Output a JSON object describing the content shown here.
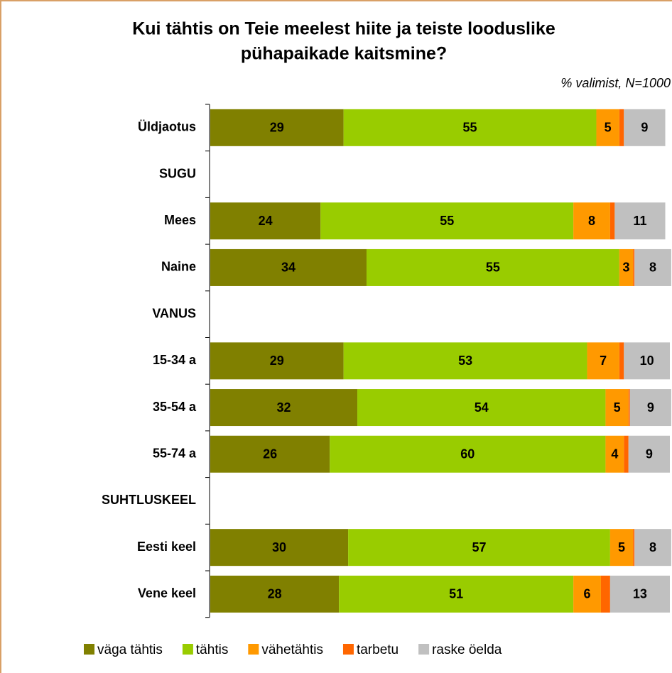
{
  "chart_data": {
    "type": "stacked_barh",
    "title": [
      "Kui tähtis on Teie meelest hiite ja teiste looduslike",
      "pühapaikade kaitsmine?"
    ],
    "subtitle": "% valimist, N=1000",
    "categories": [
      "Üldjaotus",
      "SUGU",
      "Mees",
      "Naine",
      "VANUS",
      "15-34 a",
      "35-54 a",
      "55-74 a",
      "SUHTLUSKEEL",
      "Eesti keel",
      "Vene keel"
    ],
    "xlim": [
      0,
      100
    ],
    "legend": "bottom",
    "series": [
      {
        "name": "väga tähtis",
        "color": "#808000",
        "data_labels": true,
        "values": [
          29,
          null,
          24,
          34,
          null,
          29,
          32,
          26,
          null,
          30,
          28
        ]
      },
      {
        "name": "tähtis",
        "color": "#99cc00",
        "data_labels": true,
        "values": [
          55,
          null,
          55,
          55,
          null,
          53,
          54,
          60,
          null,
          57,
          51
        ]
      },
      {
        "name": "vähetähtis",
        "color": "#ff9900",
        "data_labels": true,
        "values": [
          5,
          null,
          8,
          3,
          null,
          7,
          5,
          4,
          null,
          5,
          6
        ]
      },
      {
        "name": "tarbetu",
        "color": "#ff6600",
        "data_labels": false,
        "values": [
          1,
          null,
          1,
          0.3,
          null,
          1,
          0.3,
          1,
          null,
          0.3,
          2
        ]
      },
      {
        "name": "raske öelda",
        "color": "#c0c0c0",
        "data_labels": true,
        "values": [
          9,
          null,
          11,
          8,
          null,
          10,
          9,
          9,
          null,
          8,
          13
        ]
      }
    ]
  }
}
